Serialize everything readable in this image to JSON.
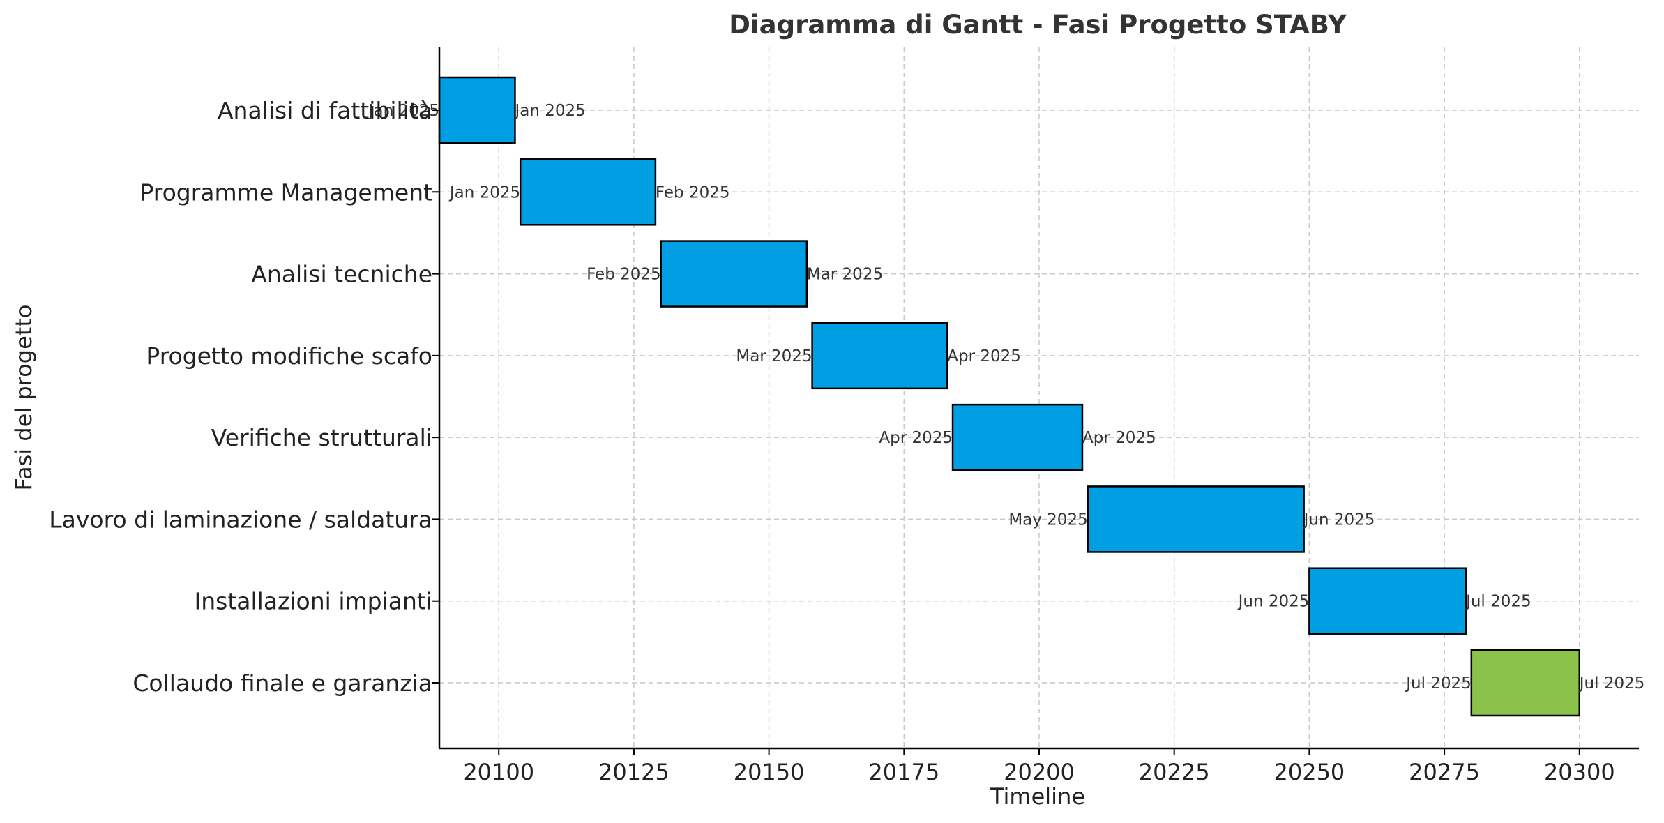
{
  "chart_data": {
    "type": "bar",
    "orientation": "horizontal-gantt",
    "title": "Diagramma di Gantt - Fasi Progetto STABY",
    "xlabel": "Timeline",
    "ylabel": "Fasi del progetto",
    "xlim": [
      20089,
      20311
    ],
    "xticks": [
      20100,
      20125,
      20150,
      20175,
      20200,
      20225,
      20250,
      20275,
      20300
    ],
    "grid": true,
    "tasks": [
      {
        "name": "Analisi di fattibilità",
        "start": 20089,
        "end": 20103,
        "start_label": "Jan 2025",
        "end_label": "Jan 2025",
        "color": "#009fe3"
      },
      {
        "name": "Programme Management",
        "start": 20104,
        "end": 20129,
        "start_label": "Jan 2025",
        "end_label": "Feb 2025",
        "color": "#009fe3"
      },
      {
        "name": "Analisi tecniche",
        "start": 20130,
        "end": 20157,
        "start_label": "Feb 2025",
        "end_label": "Mar 2025",
        "color": "#009fe3"
      },
      {
        "name": "Progetto modifiche scafo",
        "start": 20158,
        "end": 20183,
        "start_label": "Mar 2025",
        "end_label": "Apr 2025",
        "color": "#009fe3"
      },
      {
        "name": "Verifiche strutturali",
        "start": 20184,
        "end": 20208,
        "start_label": "Apr 2025",
        "end_label": "Apr 2025",
        "color": "#009fe3"
      },
      {
        "name": "Lavoro di laminazione / saldatura",
        "start": 20209,
        "end": 20249,
        "start_label": "May 2025",
        "end_label": "Jun 2025",
        "color": "#009fe3"
      },
      {
        "name": "Installazioni impianti",
        "start": 20250,
        "end": 20279,
        "start_label": "Jun 2025",
        "end_label": "Jul 2025",
        "color": "#009fe3"
      },
      {
        "name": "Collaudo finale e garanzia",
        "start": 20280,
        "end": 20300,
        "start_label": "Jul 2025",
        "end_label": "Jul 2025",
        "color": "#8bc34a"
      }
    ]
  }
}
